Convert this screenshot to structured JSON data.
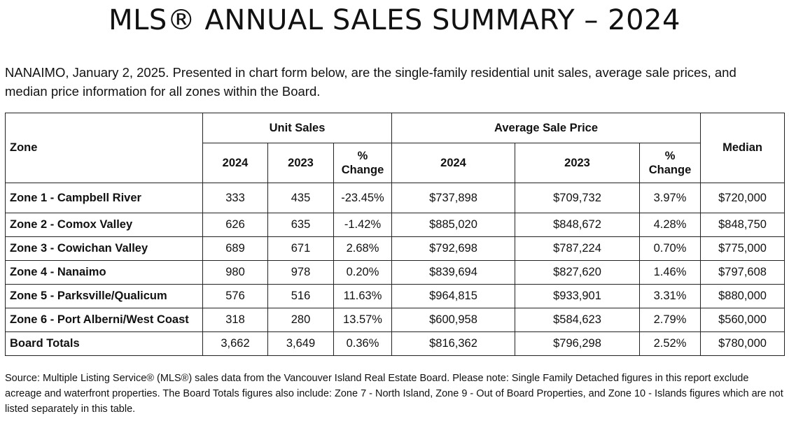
{
  "title": "MLS® ANNUAL SALES SUMMARY – 2024",
  "intro": "NANAIMO, January 2, 2025. Presented in chart form below, are the single-family residential unit sales, average sale prices, and median price information for all zones within the Board.",
  "table": {
    "zone_header": "Zone",
    "unit_sales_header": "Unit Sales",
    "avg_price_header": "Average Sale Price",
    "median_header": "Median",
    "col_2024": "2024",
    "col_2023": "2023",
    "pct_line1": "%",
    "pct_line2": "Change",
    "rows": [
      {
        "zone": "Zone 1 - Campbell River",
        "u2024": "333",
        "u2023": "435",
        "u_pct": "-23.45%",
        "p2024": "$737,898",
        "p2023": "$709,732",
        "p_pct": "3.97%",
        "median": "$720,000"
      },
      {
        "zone": "Zone 2 - Comox Valley",
        "u2024": "626",
        "u2023": "635",
        "u_pct": "-1.42%",
        "p2024": "$885,020",
        "p2023": "$848,672",
        "p_pct": "4.28%",
        "median": "$848,750"
      },
      {
        "zone": "Zone 3 - Cowichan Valley",
        "u2024": "689",
        "u2023": "671",
        "u_pct": "2.68%",
        "p2024": "$792,698",
        "p2023": "$787,224",
        "p_pct": "0.70%",
        "median": "$775,000"
      },
      {
        "zone": "Zone 4 - Nanaimo",
        "u2024": "980",
        "u2023": "978",
        "u_pct": "0.20%",
        "p2024": "$839,694",
        "p2023": "$827,620",
        "p_pct": "1.46%",
        "median": "$797,608"
      },
      {
        "zone": "Zone 5 - Parksville/Qualicum",
        "u2024": "576",
        "u2023": "516",
        "u_pct": "11.63%",
        "p2024": "$964,815",
        "p2023": "$933,901",
        "p_pct": "3.31%",
        "median": "$880,000"
      },
      {
        "zone": "Zone 6 - Port Alberni/West Coast",
        "u2024": "318",
        "u2023": "280",
        "u_pct": "13.57%",
        "p2024": "$600,958",
        "p2023": "$584,623",
        "p_pct": "2.79%",
        "median": "$560,000"
      },
      {
        "zone": "Board Totals",
        "u2024": "3,662",
        "u2023": "3,649",
        "u_pct": "0.36%",
        "p2024": "$816,362",
        "p2023": "$796,298",
        "p_pct": "2.52%",
        "median": "$780,000"
      }
    ]
  },
  "footer": "Source: Multiple Listing Service® (MLS®) sales data from the Vancouver Island Real Estate Board. Please note: Single Family Detached figures in this report exclude acreage and waterfront properties. The Board Totals figures also include: Zone 7 - North Island, Zone 9 - Out of Board Properties, and Zone 10 - Islands figures which are not listed separately in this table."
}
